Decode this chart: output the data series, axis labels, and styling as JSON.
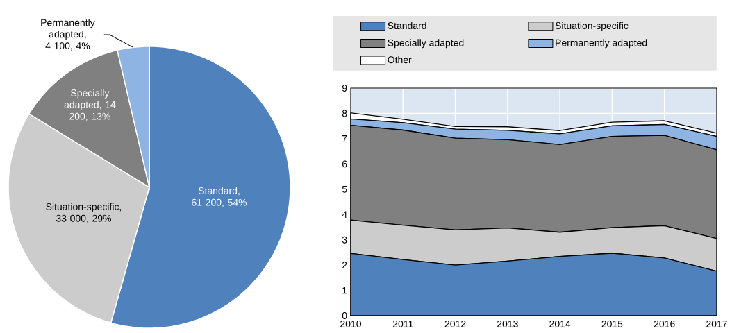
{
  "chart_data": [
    {
      "type": "pie",
      "categories": [
        "Standard, 61 200, 54%",
        "Situation-specific, 33 000, 29%",
        "Specially adapted, 14 200, 13%",
        "Permanently adapted, 4 100, 4%"
      ],
      "values": [
        61200,
        33000,
        14200,
        4100
      ],
      "colors": [
        "#4f81bd",
        "#cccccc",
        "#808080",
        "#8eb4e3"
      ]
    },
    {
      "type": "area",
      "stacked": true,
      "x": [
        2010,
        2011,
        2012,
        2013,
        2014,
        2015,
        2016,
        2017
      ],
      "series": [
        {
          "name": "Standard",
          "color": "#4f81bd",
          "values": [
            2.46,
            2.22,
            2.0,
            2.16,
            2.34,
            2.47,
            2.28,
            1.76
          ]
        },
        {
          "name": "Situation-specific",
          "color": "#cccccc",
          "values": [
            1.32,
            1.36,
            1.39,
            1.31,
            0.96,
            1.01,
            1.28,
            1.29
          ]
        },
        {
          "name": "Specially adapted",
          "color": "#808080",
          "values": [
            3.75,
            3.76,
            3.63,
            3.49,
            3.47,
            3.61,
            3.57,
            3.51
          ]
        },
        {
          "name": "Permanently adapted",
          "color": "#8eb4e3",
          "values": [
            0.25,
            0.29,
            0.36,
            0.37,
            0.42,
            0.42,
            0.43,
            0.53
          ]
        },
        {
          "name": "Other",
          "color": "#ffffff",
          "values": [
            0.24,
            0.14,
            0.1,
            0.14,
            0.13,
            0.14,
            0.15,
            0.13
          ]
        }
      ],
      "xlim": [
        2010,
        2017
      ],
      "ylim": [
        0,
        9
      ],
      "xticks": [
        2010,
        2011,
        2012,
        2013,
        2014,
        2015,
        2016,
        2017
      ],
      "yticks": [
        0,
        1,
        2,
        3,
        4,
        5,
        6,
        7,
        8,
        9
      ],
      "grid": true,
      "legend": "top"
    }
  ]
}
